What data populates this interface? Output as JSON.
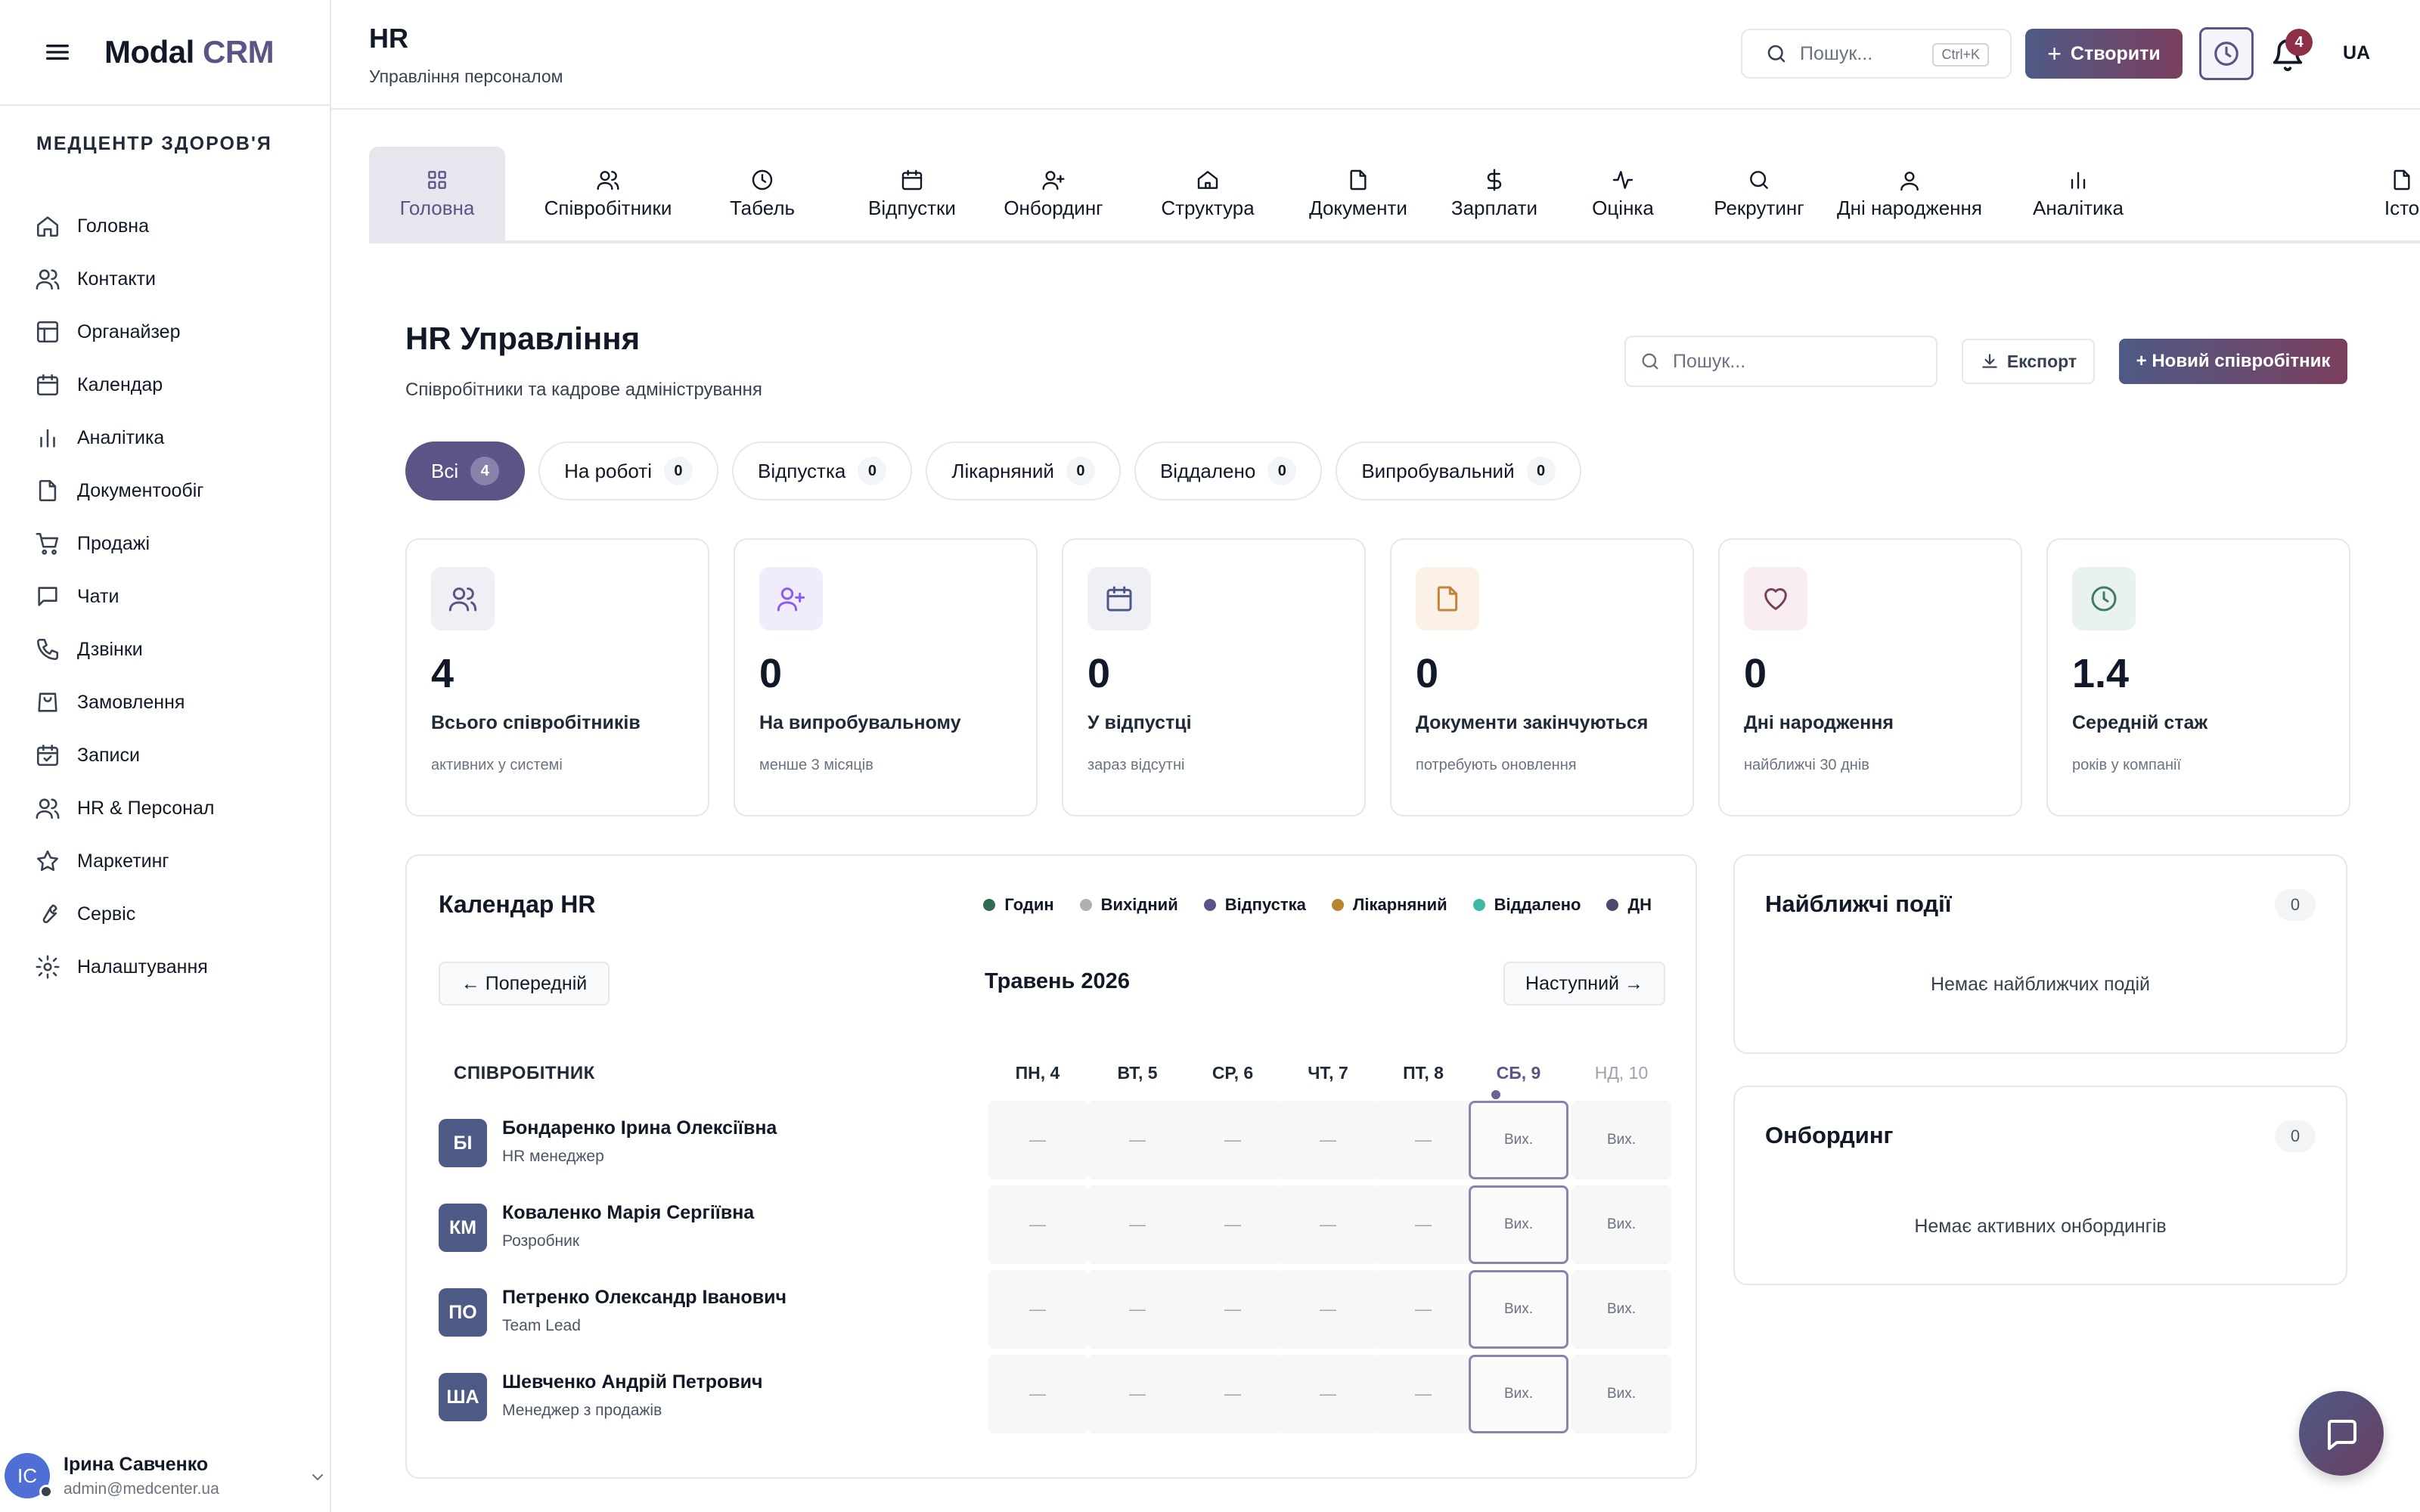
{
  "app": {
    "logo_main": "Modal",
    "logo_accent": "CRM"
  },
  "sidebar": {
    "clinic": "МЕДЦЕНТР ЗДОРОВ'Я",
    "items": [
      {
        "label": "Головна",
        "icon": "home-icon"
      },
      {
        "label": "Контакти",
        "icon": "users-icon"
      },
      {
        "label": "Органайзер",
        "icon": "layout-icon"
      },
      {
        "label": "Календар",
        "icon": "calendar-icon"
      },
      {
        "label": "Аналітика",
        "icon": "bar-chart-icon"
      },
      {
        "label": "Документообіг",
        "icon": "file-icon"
      },
      {
        "label": "Продажі",
        "icon": "cart-icon"
      },
      {
        "label": "Чати",
        "icon": "message-icon"
      },
      {
        "label": "Дзвінки",
        "icon": "phone-icon"
      },
      {
        "label": "Замовлення",
        "icon": "bag-icon"
      },
      {
        "label": "Записи",
        "icon": "calendar-check-icon"
      },
      {
        "label": "HR & Персонал",
        "icon": "users-icon"
      },
      {
        "label": "Маркетинг",
        "icon": "star-icon"
      },
      {
        "label": "Сервіс",
        "icon": "wrench-icon"
      },
      {
        "label": "Налаштування",
        "icon": "gear-icon"
      }
    ],
    "user": {
      "initials": "ІС",
      "name": "Ірина Савченко",
      "email": "admin@medcenter.ua"
    }
  },
  "header": {
    "title": "HR",
    "subtitle": "Управління персоналом",
    "search_placeholder": "Пошук...",
    "shortcut": "Ctrl+K",
    "create_label": "Створити",
    "notifications_count": "4",
    "language": "UA"
  },
  "tabs": [
    {
      "label": "Головна",
      "icon": "grid-icon",
      "active": true
    },
    {
      "label": "Співробітники",
      "icon": "users-icon"
    },
    {
      "label": "Табель",
      "icon": "clock-icon"
    },
    {
      "label": "Відпустки",
      "icon": "calendar-icon"
    },
    {
      "label": "Онбординг",
      "icon": "user-plus-icon"
    },
    {
      "label": "Структура",
      "icon": "building-icon"
    },
    {
      "label": "Документи",
      "icon": "file-icon"
    },
    {
      "label": "Зарплати",
      "icon": "dollar-icon"
    },
    {
      "label": "Оцінка",
      "icon": "activity-icon"
    },
    {
      "label": "Рекрутинг",
      "icon": "search-icon"
    },
    {
      "label": "Дні народження",
      "icon": "user-icon"
    },
    {
      "label": "Аналітика",
      "icon": "bar-chart-icon"
    },
    {
      "label": "Істо",
      "icon": "file-icon"
    }
  ],
  "page": {
    "title": "HR Управління",
    "subtitle": "Співробітники та кадрове адміністрування",
    "search_placeholder": "Пошук...",
    "export_label": "Експорт",
    "new_employee_label": "+ Новий співробітник"
  },
  "filters": [
    {
      "label": "Всі",
      "count": "4",
      "active": true
    },
    {
      "label": "На роботі",
      "count": "0"
    },
    {
      "label": "Відпустка",
      "count": "0"
    },
    {
      "label": "Лікарняний",
      "count": "0"
    },
    {
      "label": "Віддалено",
      "count": "0"
    },
    {
      "label": "Випробувальний",
      "count": "0"
    }
  ],
  "stats": [
    {
      "value": "4",
      "label": "Всього співробітників",
      "sub": "активних у системі",
      "icon": "users-icon",
      "color": "#5b5487",
      "bg": "#eef0f6"
    },
    {
      "value": "0",
      "label": "На випробувальному",
      "sub": "менше 3 місяців",
      "icon": "user-plus-icon",
      "color": "#8b5cf6",
      "bg": "#f1ecfb"
    },
    {
      "value": "0",
      "label": "У відпустці",
      "sub": "зараз відсутні",
      "icon": "calendar-icon",
      "color": "#4e5a86",
      "bg": "#eef0f6"
    },
    {
      "value": "0",
      "label": "Документи закінчуються",
      "sub": "потребують оновлення",
      "icon": "file-icon",
      "color": "#c2833a",
      "bg": "#fbf1e6"
    },
    {
      "value": "0",
      "label": "Дні народження",
      "sub": "найближчі 30 днів",
      "icon": "heart-icon",
      "color": "#7b3f5e",
      "bg": "#f8eef1"
    },
    {
      "value": "1.4",
      "label": "Середній стаж",
      "sub": "років у компанії",
      "icon": "clock-icon",
      "color": "#3f7a6a",
      "bg": "#eaf2ef"
    }
  ],
  "calendar": {
    "title": "Календар HR",
    "legend": [
      {
        "label": "Годин",
        "color": "#2f6b4f"
      },
      {
        "label": "Вихідний",
        "color": "#b0b0b0"
      },
      {
        "label": "Відпустка",
        "color": "#5b5487"
      },
      {
        "label": "Лікарняний",
        "color": "#b8862e"
      },
      {
        "label": "Віддалено",
        "color": "#3fb8a8"
      },
      {
        "label": "ДН",
        "color": "#4b4a6b"
      }
    ],
    "prev_label": "← Попередній",
    "next_label": "Наступний →",
    "month": "Травень 2026",
    "employee_col": "СПІВРОБІТНИК",
    "days": [
      {
        "label": "ПН, 4",
        "state": "normal"
      },
      {
        "label": "ВТ, 5",
        "state": "normal"
      },
      {
        "label": "СР, 6",
        "state": "normal"
      },
      {
        "label": "ЧТ, 7",
        "state": "normal"
      },
      {
        "label": "ПТ, 8",
        "state": "normal"
      },
      {
        "label": "СБ, 9",
        "state": "today"
      },
      {
        "label": "НД, 10",
        "state": "muted"
      }
    ],
    "employees": [
      {
        "initials": "БІ",
        "name": "Бондаренко Ірина Олексіївна",
        "role": "HR менеджер",
        "cells": [
          "—",
          "—",
          "—",
          "—",
          "—",
          "Вих.",
          "Вих."
        ]
      },
      {
        "initials": "КМ",
        "name": "Коваленко Марія Сергіївна",
        "role": "Розробник",
        "cells": [
          "—",
          "—",
          "—",
          "—",
          "—",
          "Вих.",
          "Вих."
        ]
      },
      {
        "initials": "ПО",
        "name": "Петренко Олександр Іванович",
        "role": "Team Lead",
        "cells": [
          "—",
          "—",
          "—",
          "—",
          "—",
          "Вих.",
          "Вих."
        ]
      },
      {
        "initials": "ША",
        "name": "Шевченко Андрій Петрович",
        "role": "Менеджер з продажів",
        "cells": [
          "—",
          "—",
          "—",
          "—",
          "—",
          "Вих.",
          "Вих."
        ]
      }
    ]
  },
  "upcoming": {
    "title": "Найближчі події",
    "count": "0",
    "empty": "Немає найближчих подій"
  },
  "onboarding": {
    "title": "Онбординг",
    "count": "0",
    "empty": "Немає активних онбордингів"
  }
}
